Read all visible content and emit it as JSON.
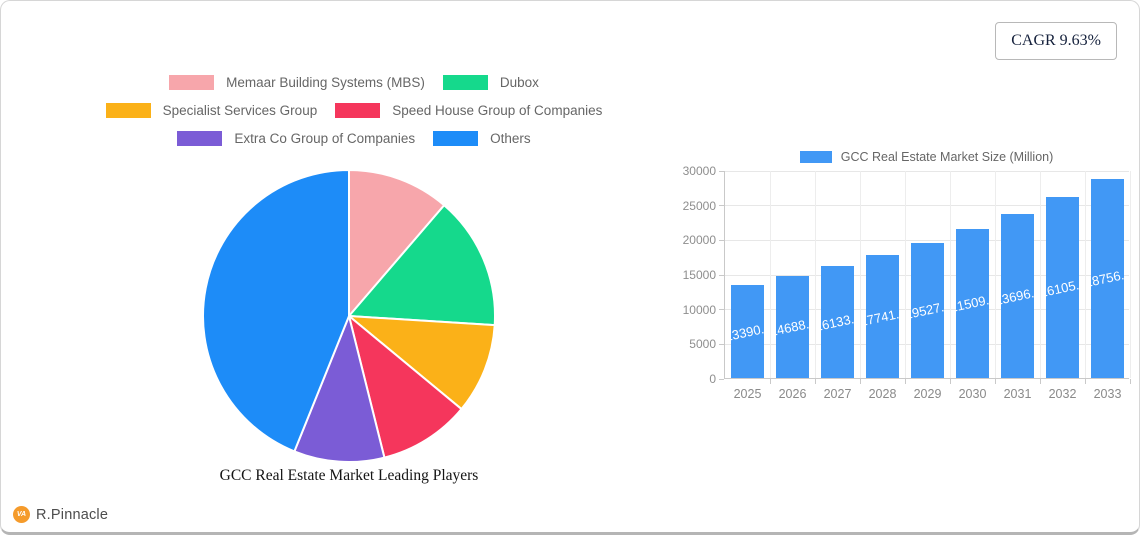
{
  "badge": {
    "label": "CAGR 9.63%"
  },
  "logo": {
    "brand": "R.Pinnacle",
    "monogram": "VA",
    "mark_color": "#F59B2B"
  },
  "chart_data": [
    {
      "type": "pie",
      "title": "GCC Real Estate Market Leading Players",
      "labels": [
        "Memaar Building Systems (MBS)",
        "Dubox",
        "Specialist Services Group",
        "Speed House Group of Companies",
        "Extra Co Group of Companies",
        "Others"
      ],
      "values": [
        11.3,
        14.7,
        10.0,
        10.1,
        10.0,
        43.9
      ],
      "colors": [
        "#F7A6AB",
        "#15D98C",
        "#FBB118",
        "#F5365C",
        "#7B5CD6",
        "#1D8CF8"
      ],
      "legend_rows": [
        [
          0,
          1
        ],
        [
          2,
          3
        ],
        [
          4,
          5
        ]
      ],
      "legend_position": "top",
      "start_angle": "12-oclock-clockwise",
      "slice_border_color": "#ffffff"
    },
    {
      "type": "bar",
      "legend_label": "GCC Real Estate Market Size (Million)",
      "legend_position": "top",
      "categories": [
        "2025",
        "2026",
        "2027",
        "2028",
        "2029",
        "2030",
        "2031",
        "2032",
        "2033"
      ],
      "values": [
        13390.4,
        14688.6,
        16133.8,
        17741.2,
        19527.4,
        21509.6,
        23696.0,
        26105.2,
        28756.1
      ],
      "value_labels": [
        "13390.4",
        "14688.6",
        "16133.8",
        "17741.2",
        "19527.4",
        "21509.6",
        "23696.0",
        "26105.2",
        "28756.1"
      ],
      "bar_color": "#4198F5",
      "xlabel": "",
      "ylabel": "",
      "ylim": [
        0,
        30000
      ],
      "yticks": [
        0,
        5000,
        10000,
        15000,
        20000,
        25000,
        30000
      ],
      "grid": true
    }
  ]
}
